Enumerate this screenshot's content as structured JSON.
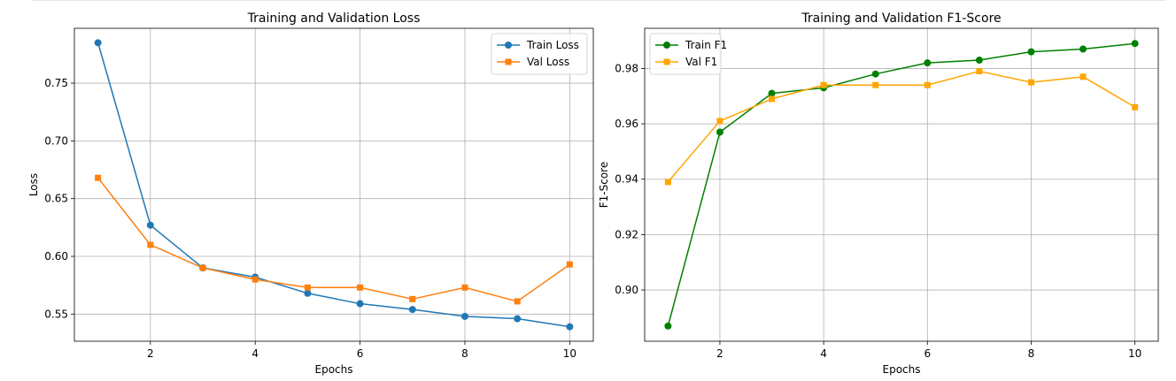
{
  "chart_data": [
    {
      "type": "line",
      "title": "Training and Validation Loss",
      "xlabel": "Epochs",
      "ylabel": "Loss",
      "xlim": [
        0.55,
        10.45
      ],
      "ylim": [
        0.5265,
        0.7975
      ],
      "xticks": [
        2,
        4,
        6,
        8,
        10
      ],
      "yticks": [
        0.55,
        0.6,
        0.65,
        0.7,
        0.75
      ],
      "ytick_labels": [
        "0.55",
        "0.60",
        "0.65",
        "0.70",
        "0.75"
      ],
      "grid": true,
      "legend_position": "upper right",
      "series": [
        {
          "name": "Train Loss",
          "color": "#1f77b4",
          "marker": "circle",
          "x": [
            1,
            2,
            3,
            4,
            5,
            6,
            7,
            8,
            9,
            10
          ],
          "values": [
            0.785,
            0.627,
            0.59,
            0.582,
            0.568,
            0.559,
            0.554,
            0.548,
            0.546,
            0.539
          ]
        },
        {
          "name": "Val Loss",
          "color": "#ff7f0e",
          "marker": "square",
          "x": [
            1,
            2,
            3,
            4,
            5,
            6,
            7,
            8,
            9,
            10
          ],
          "values": [
            0.668,
            0.61,
            0.59,
            0.58,
            0.573,
            0.573,
            0.563,
            0.573,
            0.561,
            0.593
          ]
        }
      ]
    },
    {
      "type": "line",
      "title": "Training and Validation F1-Score",
      "xlabel": "Epochs",
      "ylabel": "F1-Score",
      "xlim": [
        0.55,
        10.45
      ],
      "ylim": [
        0.8815,
        0.9945
      ],
      "xticks": [
        2,
        4,
        6,
        8,
        10
      ],
      "yticks": [
        0.9,
        0.92,
        0.94,
        0.96,
        0.98
      ],
      "ytick_labels": [
        "0.90",
        "0.92",
        "0.94",
        "0.96",
        "0.98"
      ],
      "grid": true,
      "legend_position": "upper left",
      "series": [
        {
          "name": "Train F1",
          "color": "#008000",
          "marker": "circle",
          "x": [
            1,
            2,
            3,
            4,
            5,
            6,
            7,
            8,
            9,
            10
          ],
          "values": [
            0.887,
            0.957,
            0.971,
            0.973,
            0.978,
            0.982,
            0.983,
            0.986,
            0.987,
            0.989
          ]
        },
        {
          "name": "Val F1",
          "color": "#ffa500",
          "marker": "square",
          "x": [
            1,
            2,
            3,
            4,
            5,
            6,
            7,
            8,
            9,
            10
          ],
          "values": [
            0.939,
            0.961,
            0.969,
            0.974,
            0.974,
            0.974,
            0.979,
            0.975,
            0.977,
            0.966
          ]
        }
      ]
    }
  ]
}
